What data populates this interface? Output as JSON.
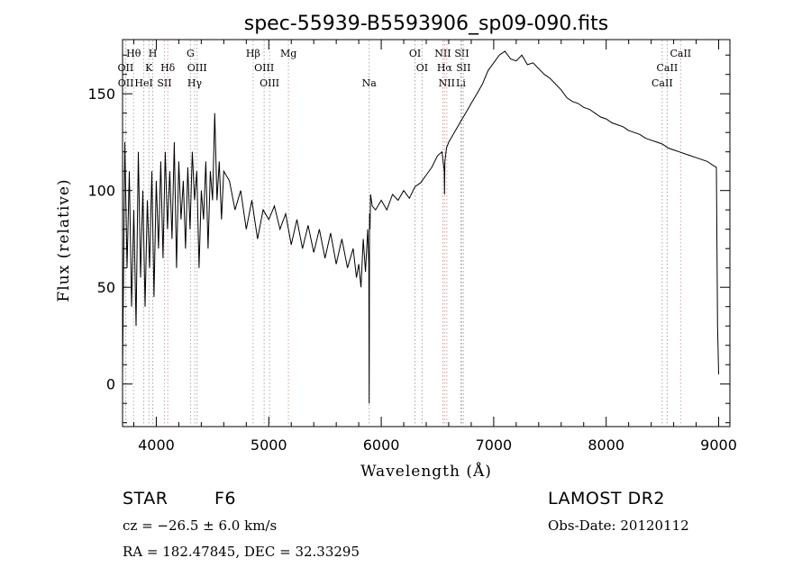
{
  "chart_data": {
    "type": "line",
    "title": "spec-55939-B5593906_sp09-090.fits",
    "xlabel": "Wavelength (Å)",
    "ylabel": "Flux (relative)",
    "xlim": [
      3700,
      9100
    ],
    "ylim": [
      -22,
      178
    ],
    "x_ticks": [
      4000,
      5000,
      6000,
      7000,
      8000,
      9000
    ],
    "y_ticks": [
      0,
      50,
      100,
      150
    ],
    "grid": false,
    "series": [
      {
        "x": [
          3700,
          3720,
          3740,
          3760,
          3780,
          3800,
          3820,
          3840,
          3860,
          3880,
          3900,
          3920,
          3940,
          3960,
          3980,
          4000,
          4020,
          4040,
          4060,
          4080,
          4100,
          4120,
          4140,
          4160,
          4180,
          4200,
          4220,
          4240,
          4260,
          4280,
          4300,
          4320,
          4340,
          4360,
          4380,
          4400,
          4420,
          4440,
          4460,
          4480,
          4500,
          4520,
          4540,
          4560,
          4580,
          4600,
          4650,
          4700,
          4750,
          4800,
          4850,
          4900,
          4950,
          5000,
          5050,
          5100,
          5150,
          5200,
          5250,
          5300,
          5350,
          5400,
          5450,
          5500,
          5550,
          5600,
          5650,
          5700,
          5750,
          5780,
          5800,
          5820,
          5840,
          5860,
          5880,
          5890,
          5893,
          5896,
          5900,
          5905,
          5920,
          5950,
          6000,
          6050,
          6100,
          6150,
          6200,
          6250,
          6300,
          6350,
          6400,
          6450,
          6500,
          6540,
          6560,
          6563,
          6566,
          6580,
          6600,
          6650,
          6700,
          6750,
          6800,
          6850,
          6900,
          6950,
          7000,
          7050,
          7100,
          7150,
          7200,
          7250,
          7300,
          7350,
          7400,
          7450,
          7500,
          7550,
          7600,
          7650,
          7700,
          7750,
          7800,
          7850,
          7900,
          7950,
          8000,
          8050,
          8100,
          8150,
          8200,
          8250,
          8300,
          8350,
          8400,
          8450,
          8500,
          8550,
          8600,
          8650,
          8700,
          8750,
          8800,
          8850,
          8900,
          8950,
          8980,
          8990,
          9000
        ],
        "y": [
          5,
          125,
          60,
          110,
          40,
          90,
          30,
          120,
          55,
          100,
          40,
          95,
          60,
          110,
          45,
          105,
          70,
          115,
          65,
          120,
          80,
          110,
          75,
          125,
          60,
          115,
          85,
          105,
          70,
          112,
          80,
          120,
          95,
          110,
          60,
          100,
          85,
          115,
          70,
          110,
          95,
          140,
          95,
          115,
          85,
          110,
          105,
          90,
          100,
          80,
          95,
          75,
          90,
          85,
          92,
          80,
          88,
          72,
          85,
          70,
          82,
          68,
          80,
          65,
          78,
          62,
          75,
          60,
          70,
          55,
          62,
          50,
          75,
          58,
          80,
          62,
          -10,
          88,
          80,
          98,
          92,
          90,
          95,
          90,
          98,
          95,
          100,
          96,
          102,
          104,
          108,
          112,
          118,
          120,
          110,
          98,
          115,
          122,
          125,
          130,
          135,
          140,
          145,
          150,
          155,
          162,
          166,
          170,
          172,
          168,
          167,
          170,
          165,
          166,
          163,
          160,
          158,
          155,
          152,
          148,
          146,
          145,
          143,
          142,
          140,
          138,
          137,
          135,
          134,
          133,
          131,
          130,
          129,
          127,
          126,
          125,
          124,
          122,
          121,
          120,
          119,
          118,
          117,
          116,
          115,
          113,
          112,
          30,
          5
        ]
      }
    ],
    "line_markers": [
      {
        "label": "Hθ",
        "x": 3798,
        "row": 1,
        "color": "#c8a6a6"
      },
      {
        "label": "OII",
        "x": 3727,
        "row": 2,
        "color": "#a6a6a6"
      },
      {
        "label": "OII",
        "x": 3729,
        "row": 3,
        "color": "#c8a6a6"
      },
      {
        "label": "K",
        "x": 3934,
        "row": 2,
        "color": "#a6a6a6"
      },
      {
        "label": "H",
        "x": 3969,
        "row": 1,
        "color": "#a6a6a6"
      },
      {
        "label": "HeI",
        "x": 3889,
        "row": 3,
        "color": "#a6a6a6"
      },
      {
        "label": "SII",
        "x": 4072,
        "row": 3,
        "color": "#c8a6a6"
      },
      {
        "label": "Hδ",
        "x": 4102,
        "row": 2,
        "color": "#c8a6a6"
      },
      {
        "label": "G",
        "x": 4304,
        "row": 1,
        "color": "#a6a6a6"
      },
      {
        "label": "OIII",
        "x": 4363,
        "row": 2,
        "color": "#a6a6a6"
      },
      {
        "label": "Hγ",
        "x": 4341,
        "row": 3,
        "color": "#c8a6a6"
      },
      {
        "label": "Hβ",
        "x": 4861,
        "row": 1,
        "color": "#c8a6a6"
      },
      {
        "label": "OIII",
        "x": 4959,
        "row": 2,
        "color": "#a6a6a6"
      },
      {
        "label": "OIII",
        "x": 5007,
        "row": 3,
        "color": "#c8a6a6"
      },
      {
        "label": "Mg",
        "x": 5175,
        "row": 1,
        "color": "#c8a6a6"
      },
      {
        "label": "Na",
        "x": 5893,
        "row": 3,
        "color": "#a6a6a6"
      },
      {
        "label": "OI",
        "x": 6300,
        "row": 1,
        "color": "#a6a6a6"
      },
      {
        "label": "OI",
        "x": 6363,
        "row": 2,
        "color": "#a6a6a6"
      },
      {
        "label": "NII",
        "x": 6548,
        "row": 1,
        "color": "#c8a6a6"
      },
      {
        "label": "Hα",
        "x": 6563,
        "row": 2,
        "color": "#c8a6a6"
      },
      {
        "label": "NII",
        "x": 6583,
        "row": 3,
        "color": "#c8a6a6"
      },
      {
        "label": "SII",
        "x": 6716,
        "row": 1,
        "color": "#c8a6a6"
      },
      {
        "label": "SII",
        "x": 6731,
        "row": 2,
        "color": "#c8a6a6"
      },
      {
        "label": "Li",
        "x": 6708,
        "row": 3,
        "color": "#a6a6a6"
      },
      {
        "label": "CaII",
        "x": 8662,
        "row": 1,
        "color": "#c8a6a6"
      },
      {
        "label": "CaII",
        "x": 8542,
        "row": 2,
        "color": "#a6a6a6"
      },
      {
        "label": "CaII",
        "x": 8498,
        "row": 3,
        "color": "#a6a6a6"
      }
    ]
  },
  "info": {
    "object_class": "STAR",
    "subclass": "F6",
    "survey": "LAMOST DR2",
    "cz": "cz = −26.5 ± 6.0 km/s",
    "obs_date": "Obs-Date: 20120112",
    "coords": "RA = 182.47845, DEC =  32.33295"
  }
}
